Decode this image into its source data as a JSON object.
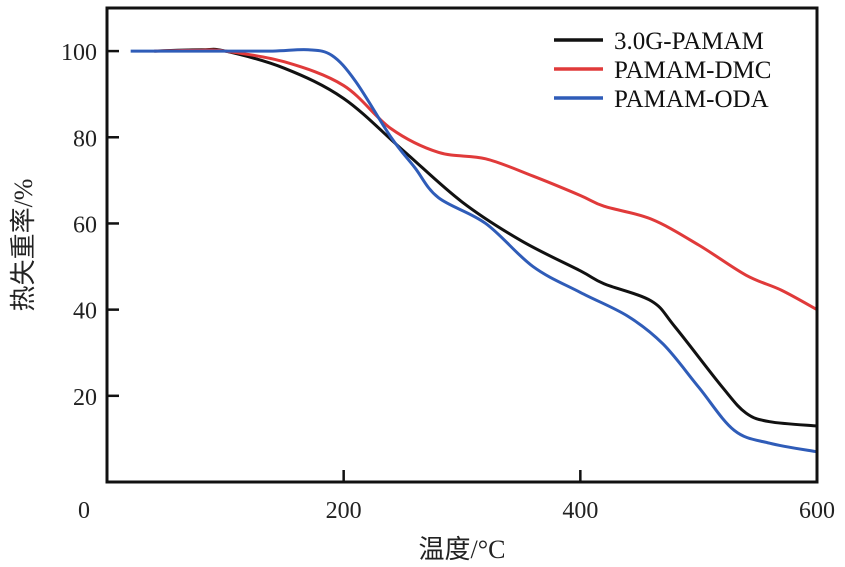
{
  "chart_data": {
    "type": "line",
    "title": "",
    "xlabel": "温度/°C",
    "ylabel": "热失重率/%",
    "xlim": [
      0,
      600
    ],
    "ylim": [
      0,
      110
    ],
    "xticks": [
      0,
      200,
      400,
      600
    ],
    "yticks": [
      20,
      40,
      60,
      80,
      100
    ],
    "grid": false,
    "legend_position": "top-right",
    "series": [
      {
        "name": "3.0G-PAMAM",
        "color": "#111111",
        "x": [
          40,
          80,
          100,
          150,
          200,
          250,
          300,
          350,
          400,
          420,
          460,
          480,
          520,
          540,
          560,
          600
        ],
        "y": [
          100,
          100.3,
          100,
          96,
          89,
          77,
          65,
          56,
          49,
          46,
          42,
          36,
          22,
          16,
          14,
          13
        ]
      },
      {
        "name": "PAMAM-DMC",
        "color": "#e03a3a",
        "x": [
          40,
          80,
          100,
          150,
          200,
          240,
          280,
          320,
          360,
          400,
          420,
          460,
          500,
          540,
          570,
          600
        ],
        "y": [
          100,
          100.2,
          100,
          97.5,
          92,
          82,
          76.5,
          75,
          71,
          66.5,
          64,
          61,
          55,
          48,
          44.5,
          40
        ]
      },
      {
        "name": "PAMAM-ODA",
        "color": "#2f5cb8",
        "x": [
          20,
          100,
          140,
          170,
          190,
          210,
          240,
          260,
          280,
          320,
          360,
          400,
          440,
          470,
          500,
          530,
          560,
          600
        ],
        "y": [
          100,
          100,
          100,
          100.3,
          99,
          93,
          80,
          73,
          66,
          60,
          50,
          44,
          38.5,
          32,
          22,
          12,
          9,
          7
        ]
      }
    ]
  }
}
